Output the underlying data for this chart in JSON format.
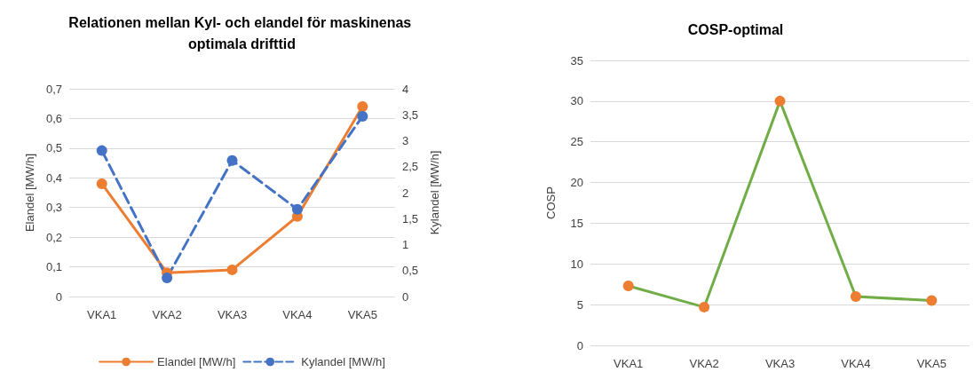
{
  "chart_data": [
    {
      "type": "line",
      "title": "Relationen mellan Kyl- och elandel för maskinenas optimala drifttid",
      "ylabel": "Elandel [MW/h]",
      "y2label": "Kylandel [MW/h]",
      "categories": [
        "VKA1",
        "VKA2",
        "VKA3",
        "VKA4",
        "VKA5"
      ],
      "series": [
        {
          "name": "Elandel [MW/h]",
          "color": "#ed7d31",
          "values": [
            0.38,
            0.08,
            0.09,
            0.27,
            0.64
          ],
          "line_style": "solid"
        },
        {
          "name": "Kylandel [MW/h]",
          "color": "#4472c4",
          "values": [
            2.81,
            0.36,
            2.62,
            1.68,
            3.47
          ],
          "axis": "y2",
          "line_style": "dashed"
        }
      ],
      "ylim": [
        0,
        0.7
      ],
      "yticks": [
        0,
        {
          "value": 0.1,
          "label": "0,1"
        },
        {
          "value": 0.2,
          "label": "0,2"
        },
        {
          "value": 0.3,
          "label": "0,3"
        },
        {
          "value": 0.4,
          "label": "0,4"
        },
        {
          "value": 0.5,
          "label": "0,5"
        },
        {
          "value": 0.6,
          "label": "0,6"
        },
        {
          "value": 0.7,
          "label": "0,7"
        }
      ],
      "y2lim": [
        0,
        4
      ],
      "y2ticks": [
        0,
        {
          "value": 0.5,
          "label": "0,5"
        },
        1,
        {
          "value": 1.5,
          "label": "1,5"
        },
        2,
        {
          "value": 2.5,
          "label": "2,5"
        },
        3,
        {
          "value": 3.5,
          "label": "3,5"
        },
        4
      ],
      "grid": "y",
      "legend": "bottom",
      "marker": "circle"
    },
    {
      "type": "line",
      "title": "COSP-optimal",
      "ylabel": "COSP",
      "categories": [
        "VKA1",
        "VKA2",
        "VKA3",
        "VKA4",
        "VKA5"
      ],
      "series": [
        {
          "color": "#70ad47",
          "colors": [
            "#ed7d31",
            "#ed7d31",
            "#ed7d31",
            "#ed7d31",
            "#ed7d31"
          ],
          "values": [
            7.3,
            4.7,
            30,
            6,
            5.5
          ]
        }
      ],
      "ylim": [
        0,
        35
      ],
      "yticks": [
        0,
        5,
        10,
        15,
        20,
        25,
        30,
        35
      ],
      "grid": "y",
      "marker": "circle"
    }
  ]
}
